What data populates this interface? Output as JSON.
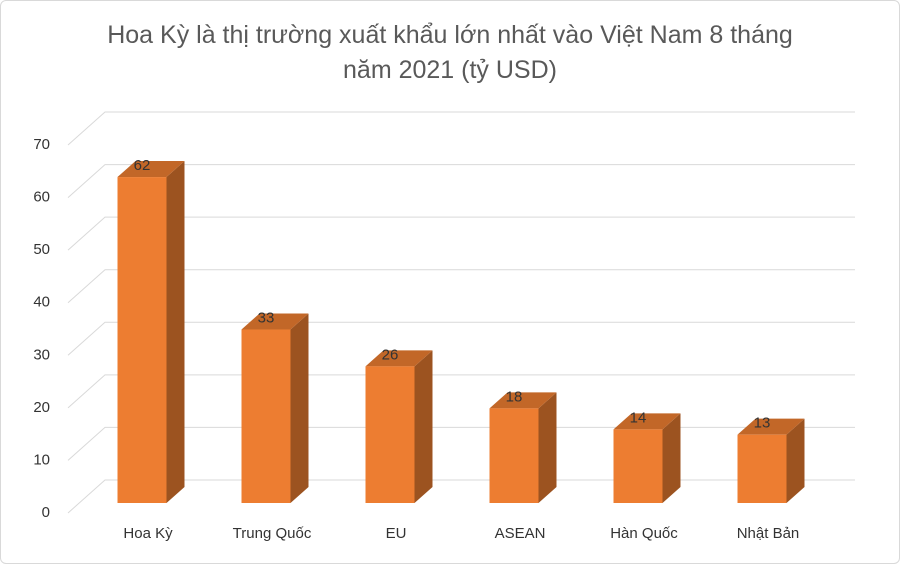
{
  "chart_data": {
    "type": "bar3d",
    "title": "Hoa Kỳ là thị trường xuất khẩu lớn nhất vào Việt Nam 8 tháng năm 2021 (tỷ USD)",
    "categories": [
      "Hoa Kỳ",
      "Trung Quốc",
      "EU",
      "ASEAN",
      "Hàn Quốc",
      "Nhật Bản"
    ],
    "values": [
      62,
      33,
      26,
      18,
      14,
      13
    ],
    "color": "#ed7d31",
    "ylim": [
      0,
      70
    ],
    "yticks": [
      0,
      10,
      20,
      30,
      40,
      50,
      60,
      70
    ],
    "grid": true
  }
}
